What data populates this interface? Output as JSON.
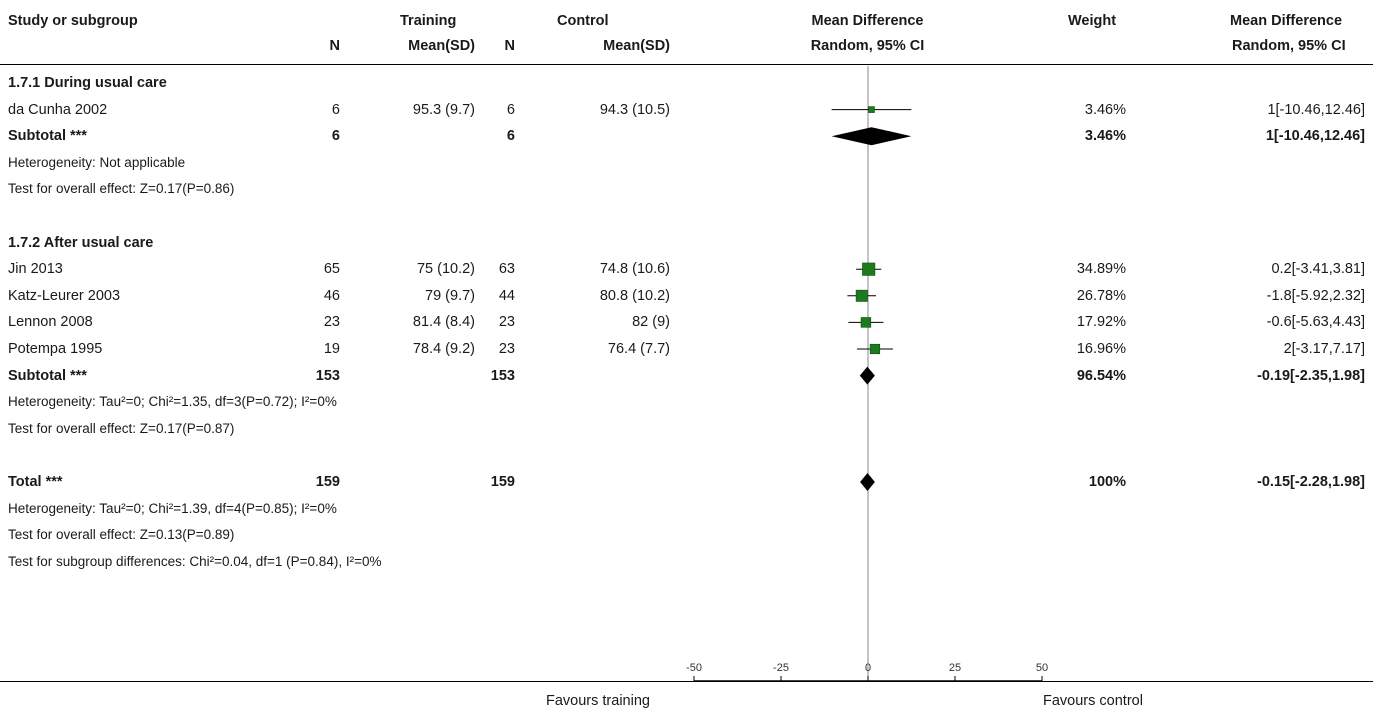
{
  "header": {
    "study": "Study or subgroup",
    "training": "Training",
    "control": "Control",
    "md": "Mean Difference",
    "weight": "Weight",
    "md_right": "Mean Difference",
    "n": "N",
    "meansd": "Mean(SD)",
    "ci": "Random, 95% CI",
    "ci_right": "Random, 95% CI"
  },
  "rows": [
    {
      "kind": "group",
      "label": "1.7.1 During usual care"
    },
    {
      "kind": "study",
      "label": "da Cunha 2002",
      "n1": "6",
      "m1": "95.3 (9.7)",
      "n2": "6",
      "m2": "94.3 (10.5)",
      "weight": "3.46%",
      "ci_text": "1[-10.46,12.46]"
    },
    {
      "kind": "subtotal",
      "label": "Subtotal ***",
      "n1": "6",
      "n2": "6",
      "weight": "3.46%",
      "ci_text": "1[-10.46,12.46]"
    },
    {
      "kind": "text",
      "label": "Heterogeneity: Not applicable"
    },
    {
      "kind": "text",
      "label": "Test for overall effect: Z=0.17(P=0.86)"
    },
    {
      "kind": "blank"
    },
    {
      "kind": "group",
      "label": "1.7.2 After usual care"
    },
    {
      "kind": "study",
      "label": "Jin 2013",
      "n1": "65",
      "m1": "75 (10.2)",
      "n2": "63",
      "m2": "74.8 (10.6)",
      "weight": "34.89%",
      "ci_text": "0.2[-3.41,3.81]"
    },
    {
      "kind": "study",
      "label": "Katz-Leurer 2003",
      "n1": "46",
      "m1": "79 (9.7)",
      "n2": "44",
      "m2": "80.8 (10.2)",
      "weight": "26.78%",
      "ci_text": "-1.8[-5.92,2.32]"
    },
    {
      "kind": "study",
      "label": "Lennon 2008",
      "n1": "23",
      "m1": "81.4 (8.4)",
      "n2": "23",
      "m2": "82 (9)",
      "weight": "17.92%",
      "ci_text": "-0.6[-5.63,4.43]"
    },
    {
      "kind": "study",
      "label": "Potempa 1995",
      "n1": "19",
      "m1": "78.4 (9.2)",
      "n2": "23",
      "m2": "76.4 (7.7)",
      "weight": "16.96%",
      "ci_text": "2[-3.17,7.17]"
    },
    {
      "kind": "subtotal",
      "label": "Subtotal ***",
      "n1": "153",
      "n2": "153",
      "weight": "96.54%",
      "ci_text": "-0.19[-2.35,1.98]"
    },
    {
      "kind": "text",
      "label": "Heterogeneity: Tau²=0; Chi²=1.35, df=3(P=0.72); I²=0%"
    },
    {
      "kind": "text",
      "label": "Test for overall effect: Z=0.17(P=0.87)"
    },
    {
      "kind": "blank"
    },
    {
      "kind": "subtotal",
      "label": "Total ***",
      "n1": "159",
      "n2": "159",
      "weight": "100%",
      "ci_text": "-0.15[-2.28,1.98]"
    },
    {
      "kind": "text",
      "label": "Heterogeneity: Tau²=0; Chi²=1.39, df=4(P=0.85); I²=0%"
    },
    {
      "kind": "text",
      "label": "Test for overall effect: Z=0.13(P=0.89)"
    },
    {
      "kind": "text",
      "label": "Test for subgroup differences: Chi²=0.04, df=1 (P=0.84), I²=0%"
    }
  ],
  "footer": {
    "favours_left": "Favours training",
    "favours_right": "Favours control"
  },
  "colors": {
    "study_marker": "#1e7a1e",
    "diamond": "#000000",
    "line": "#000000",
    "axis_line": "#888888"
  },
  "chart_data": {
    "type": "forest",
    "xlim": [
      -50,
      50
    ],
    "ticks": [
      -50,
      -25,
      0,
      25,
      50
    ],
    "null_value": 0,
    "studies": [
      {
        "name": "da Cunha 2002",
        "md": 1,
        "lo": -10.46,
        "hi": 12.46,
        "weight": 3.46
      },
      {
        "name": "Jin 2013",
        "md": 0.2,
        "lo": -3.41,
        "hi": 3.81,
        "weight": 34.89
      },
      {
        "name": "Katz-Leurer 2003",
        "md": -1.8,
        "lo": -5.92,
        "hi": 2.32,
        "weight": 26.78
      },
      {
        "name": "Lennon 2008",
        "md": -0.6,
        "lo": -5.63,
        "hi": 4.43,
        "weight": 17.92
      },
      {
        "name": "Potempa 1995",
        "md": 2,
        "lo": -3.17,
        "hi": 7.17,
        "weight": 16.96
      }
    ],
    "pooled": [
      {
        "name": "Subtotal ***",
        "md": 1,
        "lo": -10.46,
        "hi": 12.46
      },
      {
        "name": "Subtotal ***",
        "md": -0.19,
        "lo": -2.35,
        "hi": 1.98
      },
      {
        "name": "Total ***",
        "md": -0.15,
        "lo": -2.28,
        "hi": 1.98
      }
    ]
  }
}
